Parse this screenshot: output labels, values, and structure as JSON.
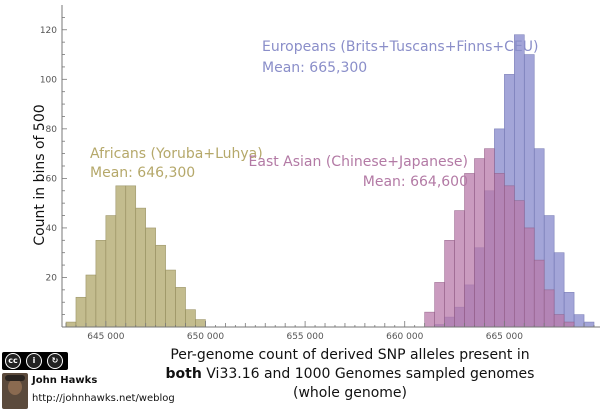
{
  "chart_data": {
    "type": "bar",
    "subtype": "overlapping-histogram",
    "title": "",
    "xlabel_lines": [
      "Per-genome count of derived SNP alleles present in",
      "Vi33.16 and 1000 Genomes sampled genomes",
      "(whole genome)"
    ],
    "xlabel_bold_word": "both",
    "ylabel": "Count in bins of 500",
    "xlim": [
      642800,
      669800
    ],
    "ylim": [
      0,
      130
    ],
    "bin_width": 500,
    "x_ticks": [
      645000,
      650000,
      655000,
      660000,
      665000
    ],
    "x_tick_labels": [
      "645 000",
      "650 000",
      "655 000",
      "660 000",
      "665 000"
    ],
    "y_ticks": [
      20,
      40,
      60,
      80,
      100,
      120
    ],
    "grid": false,
    "series": [
      {
        "name": "Africans (Yoruba+Luhya)",
        "mean_label": "Mean: 646,300",
        "color": "#b9b07a",
        "fill_opacity": 0.85,
        "bin_starts": [
          643000,
          643500,
          644000,
          644500,
          645000,
          645500,
          646000,
          646500,
          647000,
          647500,
          648000,
          648500,
          649000,
          649500
        ],
        "values": [
          2,
          12,
          21,
          35,
          45,
          57,
          57,
          48,
          40,
          33,
          23,
          16,
          7,
          3
        ]
      },
      {
        "name": "Europeans (Brits+Tuscans+Finns+CEU)",
        "mean_label": "Mean: 665,300",
        "color": "#8c8fce",
        "fill_opacity": 0.8,
        "bin_starts": [
          661500,
          662000,
          662500,
          663000,
          663500,
          664000,
          664500,
          665000,
          665500,
          666000,
          666500,
          667000,
          667500,
          668000,
          668500,
          669000
        ],
        "values": [
          1,
          4,
          8,
          17,
          32,
          55,
          80,
          102,
          118,
          110,
          72,
          45,
          30,
          14,
          5,
          2
        ]
      },
      {
        "name": "East Asian (Chinese+Japanese)",
        "mean_label": "Mean: 664,600",
        "color": "#b87aa9",
        "fill_opacity": 0.75,
        "bin_starts": [
          661000,
          661500,
          662000,
          662500,
          663000,
          663500,
          664000,
          664500,
          665000,
          665500,
          666000,
          666500,
          667000,
          667500,
          668000
        ],
        "values": [
          6,
          18,
          35,
          47,
          62,
          68,
          72,
          62,
          57,
          51,
          40,
          27,
          15,
          5,
          2
        ]
      }
    ],
    "annotations": [
      {
        "series": 0,
        "color": "#b5a86a"
      },
      {
        "series": 1,
        "color": "#8a8ec9"
      },
      {
        "series": 2,
        "color": "#b37aa5"
      }
    ]
  },
  "credit": {
    "license_badge": "cc BY SA",
    "author": "John Hawks",
    "url": "http://johnhawks.net/weblog"
  }
}
